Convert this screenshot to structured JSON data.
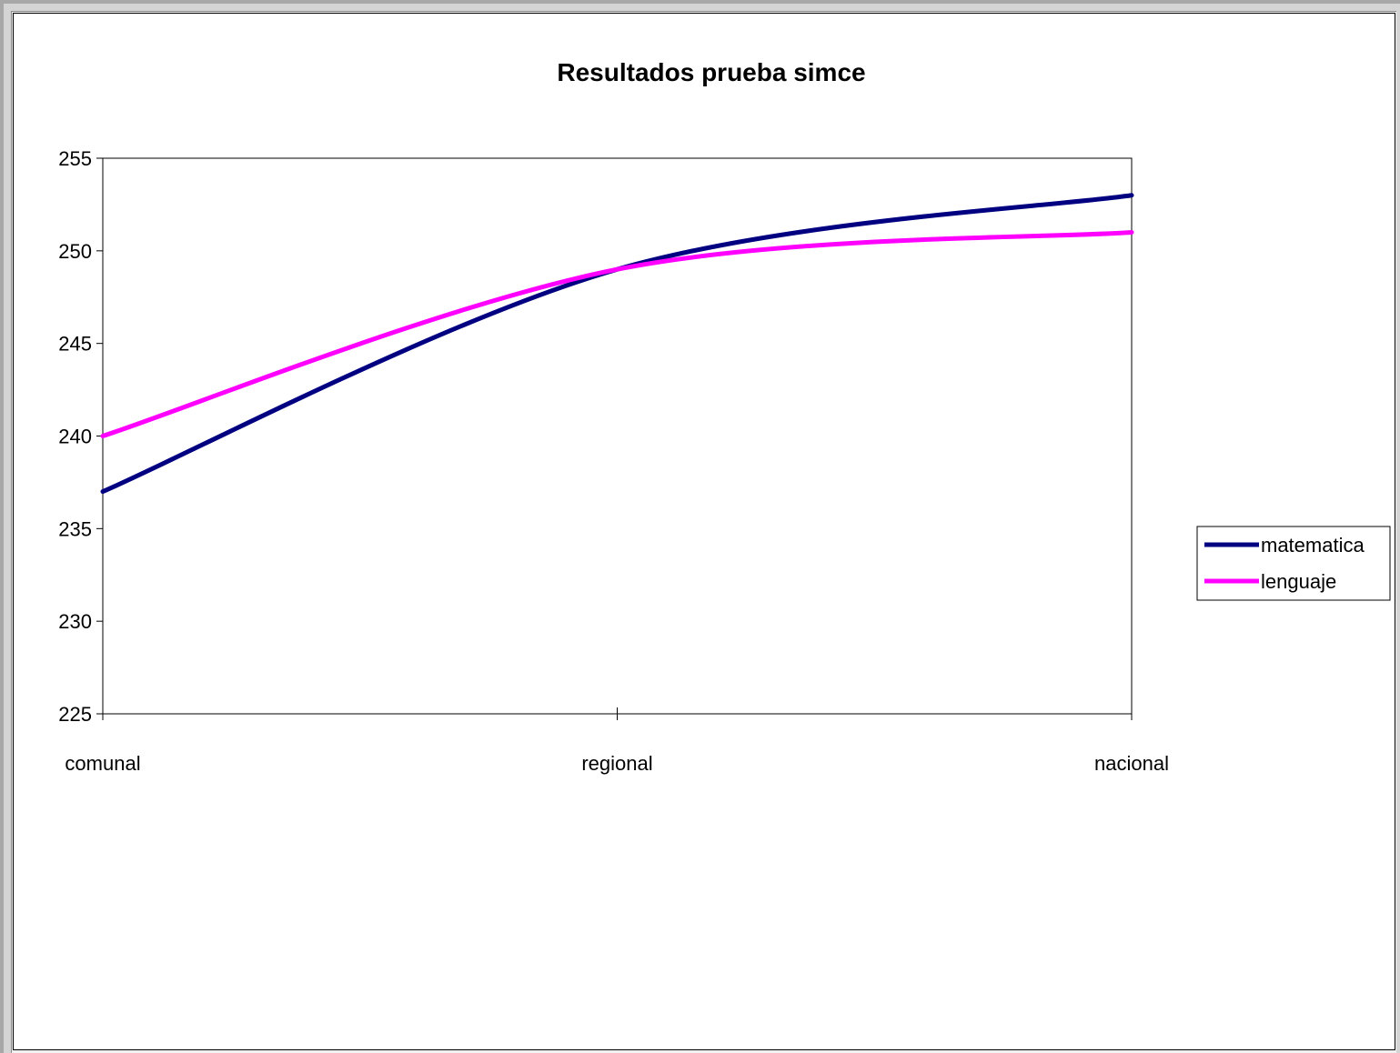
{
  "chart_data": {
    "type": "line",
    "title": "Resultados prueba simce",
    "xlabel": "",
    "ylabel": "",
    "categories": [
      "comunal",
      "regional",
      "nacional"
    ],
    "ylim": [
      225,
      255
    ],
    "yticks": [
      225,
      230,
      235,
      240,
      245,
      250,
      255
    ],
    "grid": false,
    "legend": "right",
    "series": [
      {
        "name": "matematica",
        "values": [
          237,
          249,
          253
        ],
        "color": "#000080"
      },
      {
        "name": "lenguaje",
        "values": [
          240,
          249,
          251
        ],
        "color": "#ff00ff"
      }
    ]
  }
}
